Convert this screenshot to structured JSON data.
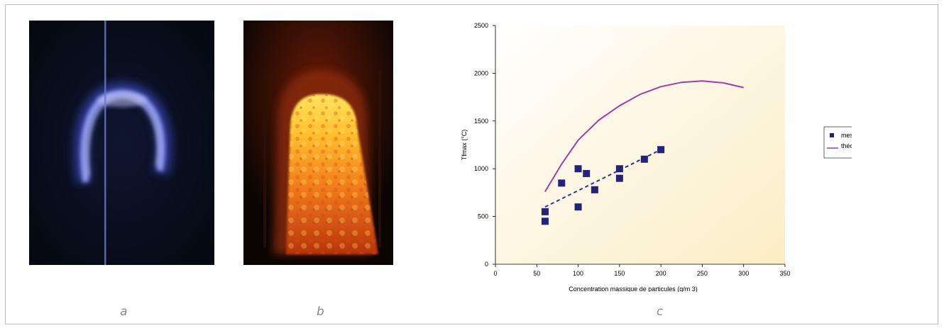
{
  "captions": {
    "a": "a",
    "b": "b",
    "c": "c"
  },
  "panels": {
    "a": {
      "icon": "blue-flame-image"
    },
    "b": {
      "icon": "orange-flame-image"
    }
  },
  "colors": {
    "bg_top": "#ffffff",
    "bg_bottom": "#fbedc4",
    "measure_marker": "#23237a",
    "theory_line": "#a03cae",
    "trend_line": "#2e36a0"
  },
  "chart_data": {
    "type": "scatter",
    "xlabel": "Concentration massique de particules (g/m 3)",
    "ylabel": "Tfmax (°C)",
    "xlim": [
      0,
      350
    ],
    "ylim": [
      0,
      2500
    ],
    "x_ticks": [
      "0",
      "50",
      "100",
      "150",
      "200",
      "250",
      "300",
      "350"
    ],
    "y_ticks": [
      "0",
      "500",
      "1000",
      "1500",
      "2000",
      "2500"
    ],
    "legend_position": "right",
    "grid": false,
    "series": [
      {
        "name": "mesures",
        "kind": "scatter",
        "marker": "square",
        "points": [
          [
            60,
            450
          ],
          [
            60,
            550
          ],
          [
            80,
            850
          ],
          [
            100,
            600
          ],
          [
            100,
            1000
          ],
          [
            110,
            950
          ],
          [
            120,
            780
          ],
          [
            150,
            900
          ],
          [
            150,
            1000
          ],
          [
            180,
            1100
          ],
          [
            200,
            1200
          ]
        ]
      },
      {
        "name": "théorie",
        "kind": "line",
        "points": [
          [
            60,
            760
          ],
          [
            80,
            1050
          ],
          [
            100,
            1300
          ],
          [
            125,
            1510
          ],
          [
            150,
            1660
          ],
          [
            175,
            1780
          ],
          [
            200,
            1860
          ],
          [
            225,
            1905
          ],
          [
            250,
            1920
          ],
          [
            275,
            1900
          ],
          [
            300,
            1850
          ]
        ]
      },
      {
        "kind": "trend",
        "style": "dashed",
        "points": [
          [
            60,
            600
          ],
          [
            200,
            1200
          ]
        ]
      }
    ]
  }
}
